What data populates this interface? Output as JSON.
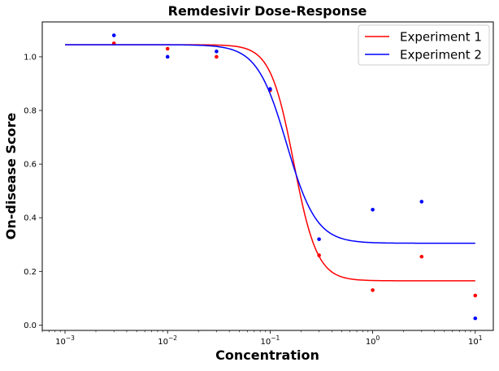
{
  "chart_data": {
    "type": "line",
    "title": "Remdesivir Dose-Response",
    "xlabel": "Concentration",
    "ylabel": "On-disease Score",
    "xscale": "log",
    "xlim": [
      0.0006,
      15
    ],
    "ylim": [
      -0.02,
      1.13
    ],
    "xticks": [
      {
        "value": 0.001,
        "base": "10",
        "exp": "−3"
      },
      {
        "value": 0.01,
        "base": "10",
        "exp": "−2"
      },
      {
        "value": 0.1,
        "base": "10",
        "exp": "−1"
      },
      {
        "value": 1,
        "base": "10",
        "exp": "0"
      },
      {
        "value": 10,
        "base": "10",
        "exp": "1"
      }
    ],
    "yticks": [
      {
        "value": 0.0,
        "label": "0.0"
      },
      {
        "value": 0.2,
        "label": "0.2"
      },
      {
        "value": 0.4,
        "label": "0.4"
      },
      {
        "value": 0.6,
        "label": "0.6"
      },
      {
        "value": 0.8,
        "label": "0.8"
      },
      {
        "value": 1.0,
        "label": "1.0"
      }
    ],
    "grid": false,
    "legend_position": "top-right",
    "series": [
      {
        "name": "Experiment 1",
        "color": "#ff0000",
        "points": [
          {
            "x": 0.003,
            "y": 1.05
          },
          {
            "x": 0.01,
            "y": 1.03
          },
          {
            "x": 0.03,
            "y": 1.0
          },
          {
            "x": 0.1,
            "y": 0.875
          },
          {
            "x": 0.3,
            "y": 0.26
          },
          {
            "x": 1,
            "y": 0.13
          },
          {
            "x": 3,
            "y": 0.255
          },
          {
            "x": 10,
            "y": 0.11
          }
        ],
        "fit": {
          "top": 1.045,
          "bottom": 0.165,
          "ec50": 0.17,
          "hill": 3.8
        }
      },
      {
        "name": "Experiment 2",
        "color": "#0000ff",
        "points": [
          {
            "x": 0.003,
            "y": 1.08
          },
          {
            "x": 0.01,
            "y": 1.0
          },
          {
            "x": 0.03,
            "y": 1.02
          },
          {
            "x": 0.1,
            "y": 0.88
          },
          {
            "x": 0.3,
            "y": 0.32
          },
          {
            "x": 1,
            "y": 0.43
          },
          {
            "x": 3,
            "y": 0.46
          },
          {
            "x": 10,
            "y": 0.025
          }
        ],
        "fit": {
          "top": 1.045,
          "bottom": 0.305,
          "ec50": 0.145,
          "hill": 3.0
        }
      }
    ]
  }
}
